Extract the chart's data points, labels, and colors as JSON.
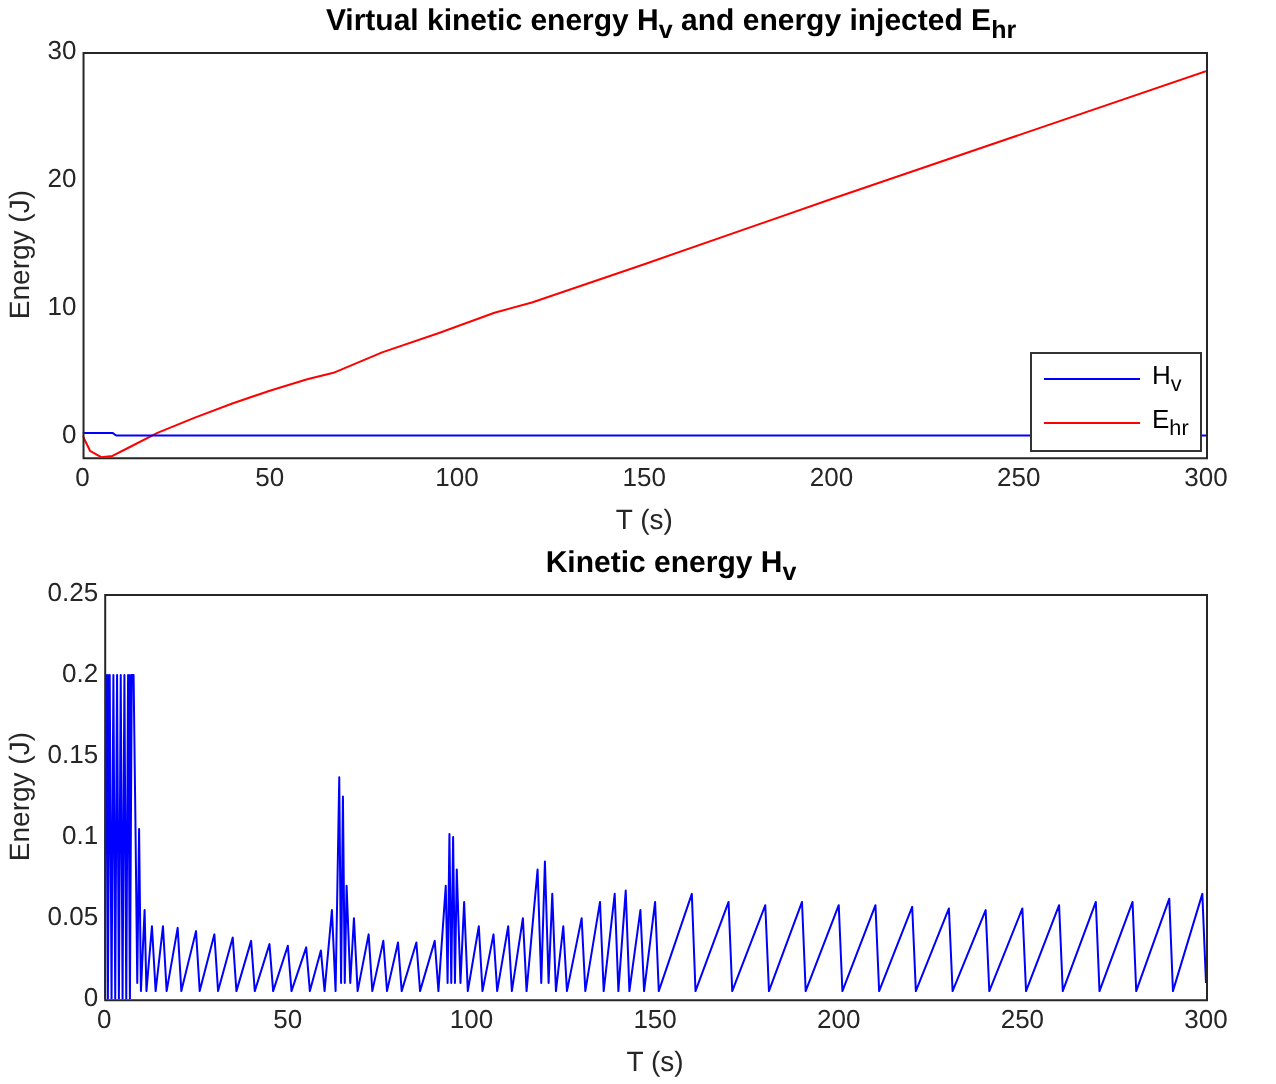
{
  "chart_data": [
    {
      "type": "line",
      "title": "Virtual kinetic energy H$_{v}$ and energy injected E$_{hr}$",
      "xlabel": "T (s)",
      "ylabel": "Energy (J)",
      "xlim": [
        0,
        300
      ],
      "xticks": [
        0,
        50,
        100,
        150,
        200,
        250,
        300
      ],
      "ylim": [
        -1.7,
        30
      ],
      "yticks": [
        0,
        10,
        20,
        30
      ],
      "legend": "bottom right",
      "series": [
        {
          "name": "H$_{v}$",
          "color": "#0000ff",
          "x": [
            0,
            8,
            9,
            300
          ],
          "values": [
            0.2,
            0.2,
            0,
            0
          ]
        },
        {
          "name": "E$_{hr}$",
          "color": "#ff0000",
          "x": [
            0,
            2,
            5,
            8,
            12,
            20,
            30,
            40,
            50,
            60,
            67,
            80,
            95,
            110,
            120,
            150,
            200,
            250,
            300
          ],
          "values": [
            0,
            -1.2,
            -1.7,
            -1.6,
            -1,
            0.2,
            1.4,
            2.5,
            3.5,
            4.4,
            4.9,
            6.5,
            8,
            9.6,
            10.4,
            13.4,
            18.5,
            23.5,
            28.5
          ]
        }
      ]
    },
    {
      "type": "line",
      "title": "Kinetic energy H$_{v}$",
      "xlabel": "T (s)",
      "ylabel": "Energy (J)",
      "xlim": [
        0,
        300
      ],
      "xticks": [
        0,
        50,
        100,
        150,
        200,
        250,
        300
      ],
      "ylim": [
        0,
        0.25
      ],
      "yticks": [
        0,
        0.05,
        0.1,
        0.15,
        0.2,
        0.25
      ],
      "series": [
        {
          "color": "#0000ff",
          "x": [
            0,
            0.5,
            1,
            1.5,
            2,
            2.5,
            3,
            3.5,
            4,
            4.5,
            5,
            5.5,
            6,
            6.5,
            7,
            7.5,
            8,
            8.5,
            9,
            9.5,
            10,
            11,
            11.5,
            13,
            14,
            16,
            17,
            20,
            21,
            25,
            26,
            30,
            31,
            35,
            36,
            40,
            41,
            45,
            46,
            50,
            51,
            55,
            56,
            59,
            60,
            62,
            63,
            64,
            64.5,
            65,
            65.5,
            66,
            67,
            68,
            69,
            72,
            73,
            76,
            77,
            80,
            81,
            85,
            86,
            90,
            91,
            93,
            93.5,
            94,
            94.5,
            95,
            95.5,
            96,
            97,
            98,
            99,
            102,
            103,
            106,
            107,
            110,
            111,
            114,
            115,
            118,
            119,
            120,
            121,
            122,
            123,
            125,
            126,
            130,
            131,
            135,
            136,
            139,
            140,
            142,
            143,
            146,
            147,
            150,
            151,
            160,
            161,
            170,
            171,
            180,
            181,
            190,
            191,
            200,
            201,
            210,
            211,
            220,
            221,
            230,
            231,
            240,
            241,
            250,
            251,
            260,
            261,
            270,
            271,
            280,
            281,
            290,
            291,
            299,
            300
          ],
          "values": [
            0,
            0.2,
            0,
            0.2,
            0,
            0.2,
            0,
            0.2,
            0,
            0.2,
            0,
            0.2,
            0,
            0.2,
            0,
            0.2,
            0.2,
            0.11,
            0.01,
            0.105,
            0.005,
            0.055,
            0.005,
            0.045,
            0.005,
            0.045,
            0.005,
            0.044,
            0.005,
            0.042,
            0.005,
            0.04,
            0.005,
            0.038,
            0.005,
            0.036,
            0.005,
            0.034,
            0.005,
            0.033,
            0.005,
            0.032,
            0.005,
            0.03,
            0.005,
            0.055,
            0.005,
            0.137,
            0.01,
            0.125,
            0.01,
            0.07,
            0.01,
            0.05,
            0.005,
            0.04,
            0.005,
            0.036,
            0.005,
            0.035,
            0.005,
            0.035,
            0.005,
            0.036,
            0.005,
            0.07,
            0.01,
            0.102,
            0.01,
            0.1,
            0.01,
            0.08,
            0.01,
            0.06,
            0.005,
            0.045,
            0.005,
            0.04,
            0.005,
            0.045,
            0.005,
            0.05,
            0.005,
            0.08,
            0.01,
            0.085,
            0.01,
            0.065,
            0.005,
            0.045,
            0.005,
            0.05,
            0.005,
            0.06,
            0.005,
            0.065,
            0.005,
            0.067,
            0.005,
            0.055,
            0.005,
            0.06,
            0.005,
            0.065,
            0.005,
            0.06,
            0.005,
            0.058,
            0.005,
            0.06,
            0.005,
            0.058,
            0.005,
            0.058,
            0.005,
            0.057,
            0.005,
            0.056,
            0.005,
            0.055,
            0.005,
            0.056,
            0.005,
            0.058,
            0.005,
            0.06,
            0.005,
            0.06,
            0.005,
            0.062,
            0.005,
            0.065,
            0.01
          ]
        }
      ]
    }
  ]
}
